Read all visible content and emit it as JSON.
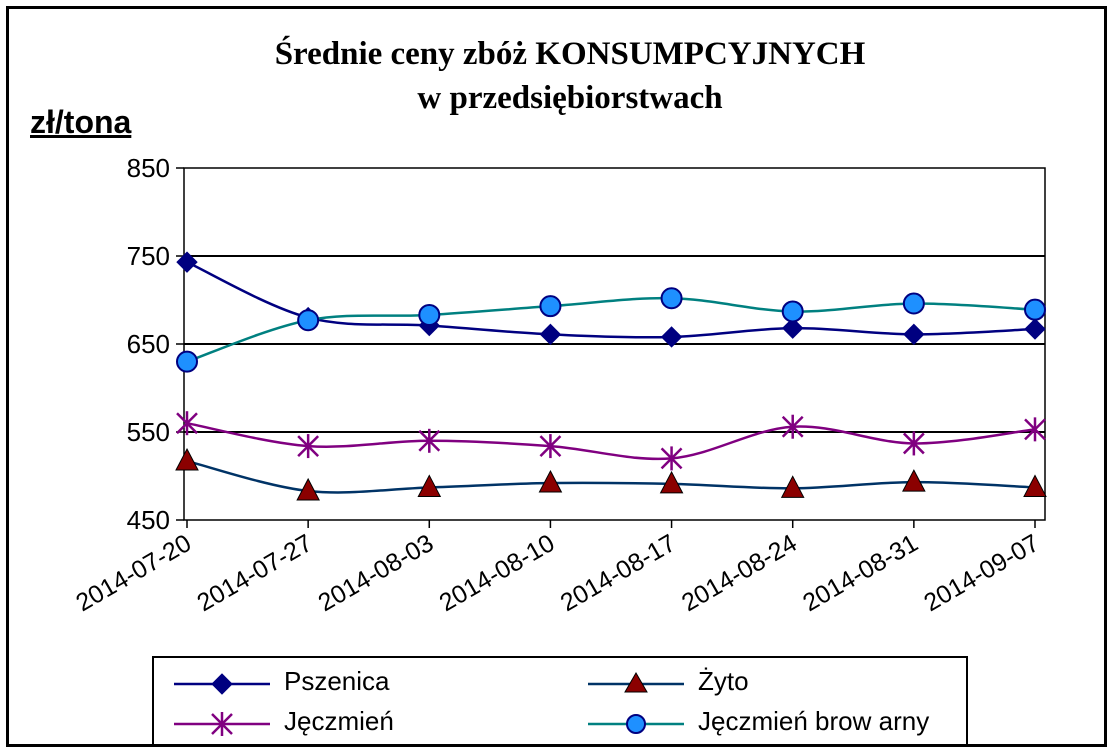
{
  "title_line1": "Średnie ceny zbóż KONSUMPCYJNYCH",
  "title_line2": "w przedsiębiorstwach",
  "unit_label": "zł/tona",
  "chart_data": {
    "type": "line",
    "title": "Średnie ceny zbóż KONSUMPCYJNYCH w przedsiębiorstwach",
    "ylabel": "zł/tona",
    "xlabel": "",
    "ylim": [
      450,
      850
    ],
    "yticks": [
      "850",
      "750",
      "650",
      "550",
      "450"
    ],
    "grid": "horizontal",
    "legend_position": "bottom",
    "x": [
      "2014-07-20",
      "2014-07-27",
      "2014-08-03",
      "2014-08-10",
      "2014-08-17",
      "2014-08-24",
      "2014-08-31",
      "2014-09-07"
    ],
    "series": [
      {
        "name": "Pszenica",
        "color": "#000080",
        "marker": "diamond",
        "values": [
          743,
          680,
          671,
          661,
          658,
          668,
          661,
          667
        ]
      },
      {
        "name": "Żyto",
        "color": "#003366",
        "marker_color": "#8B0000",
        "marker": "triangle",
        "values": [
          517,
          483,
          487,
          492,
          491,
          486,
          493,
          487
        ]
      },
      {
        "name": "Jęczmień",
        "color": "#800080",
        "marker": "asterisk",
        "values": [
          560,
          534,
          540,
          534,
          520,
          556,
          537,
          553
        ]
      },
      {
        "name": "Jęczmień brow arny",
        "color": "#008080",
        "marker_color": "#1E90FF",
        "marker": "circle",
        "values": [
          630,
          677,
          683,
          693,
          702,
          687,
          696,
          689
        ]
      }
    ]
  }
}
